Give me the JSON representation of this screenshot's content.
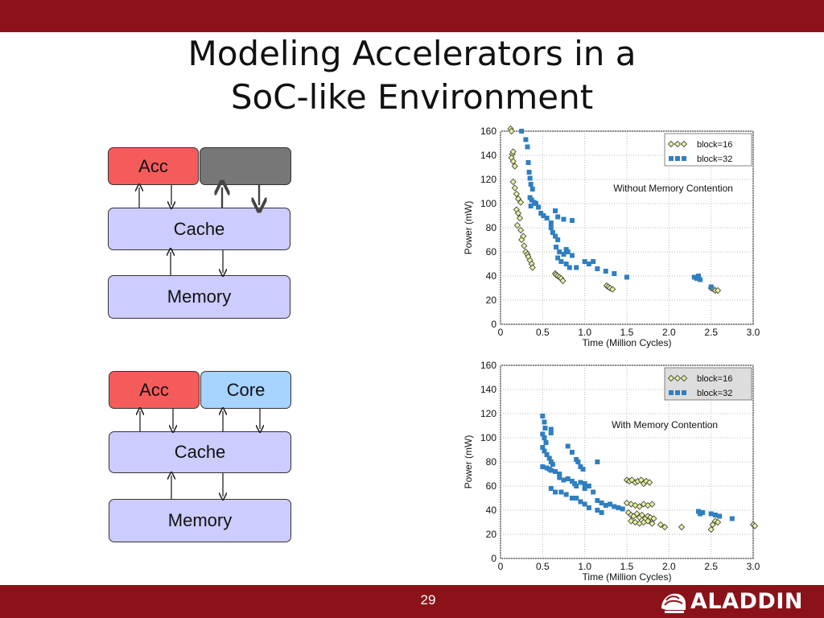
{
  "slide": {
    "title_line1": "Modeling Accelerators in a",
    "title_line2": "SoC-like Environment",
    "page_number": "29",
    "logo_text": "ALADDIN",
    "colors": {
      "bar": "#8b1218",
      "acc": "#f65b5b",
      "core": "#a6d3ff",
      "cache": "#ccccff",
      "grey": "#777777"
    }
  },
  "diagram_top": {
    "acc_label": "Acc",
    "cache_label": "Cache",
    "memory_label": "Memory"
  },
  "diagram_bottom": {
    "acc_label": "Acc",
    "core_label": "Core",
    "cache_label": "Cache",
    "memory_label": "Memory"
  },
  "chart_data": [
    {
      "type": "scatter",
      "annotation": "Without Memory Contention",
      "xlabel": "Time (Million Cycles)",
      "ylabel": "Power (mW)",
      "xlim": [
        0,
        3.0
      ],
      "ylim": [
        0,
        160
      ],
      "xticks": [
        "0",
        "0.5",
        "1.0",
        "1.5",
        "2.0",
        "2.5",
        "3.0"
      ],
      "yticks": [
        "0",
        "20",
        "40",
        "60",
        "80",
        "100",
        "120",
        "140",
        "160"
      ],
      "grid": true,
      "legend_position": "top-right",
      "series": [
        {
          "name": "block=16",
          "marker": "diamond",
          "color": "#e8f0a0",
          "points": [
            [
              0.12,
              162
            ],
            [
              0.13,
              160
            ],
            [
              0.14,
              141
            ],
            [
              0.15,
              143
            ],
            [
              0.13,
              138
            ],
            [
              0.15,
              135
            ],
            [
              0.17,
              131
            ],
            [
              0.15,
              118
            ],
            [
              0.17,
              113
            ],
            [
              0.19,
              108
            ],
            [
              0.21,
              104
            ],
            [
              0.24,
              101
            ],
            [
              0.19,
              95
            ],
            [
              0.21,
              92
            ],
            [
              0.23,
              88
            ],
            [
              0.2,
              82
            ],
            [
              0.24,
              78
            ],
            [
              0.27,
              73
            ],
            [
              0.25,
              70
            ],
            [
              0.28,
              65
            ],
            [
              0.3,
              60
            ],
            [
              0.32,
              58
            ],
            [
              0.33,
              56
            ],
            [
              0.35,
              53
            ],
            [
              0.37,
              50
            ],
            [
              0.38,
              47
            ],
            [
              0.65,
              42
            ],
            [
              0.66,
              41
            ],
            [
              0.68,
              40
            ],
            [
              0.7,
              39
            ],
            [
              0.72,
              38
            ],
            [
              0.74,
              36
            ],
            [
              1.26,
              32
            ],
            [
              1.28,
              31
            ],
            [
              1.3,
              30
            ],
            [
              1.33,
              29
            ],
            [
              2.5,
              30
            ],
            [
              2.53,
              29
            ],
            [
              2.55,
              28
            ],
            [
              2.58,
              28
            ]
          ]
        },
        {
          "name": "block=32",
          "marker": "square",
          "color": "#2f7fc1",
          "points": [
            [
              0.25,
              160
            ],
            [
              0.3,
              153
            ],
            [
              0.32,
              147
            ],
            [
              0.33,
              134
            ],
            [
              0.34,
              126
            ],
            [
              0.35,
              121
            ],
            [
              0.36,
              116
            ],
            [
              0.38,
              112
            ],
            [
              0.35,
              105
            ],
            [
              0.37,
              103
            ],
            [
              0.4,
              101
            ],
            [
              0.36,
              98
            ],
            [
              0.42,
              100
            ],
            [
              0.45,
              97
            ],
            [
              0.48,
              92
            ],
            [
              0.51,
              90
            ],
            [
              0.55,
              88
            ],
            [
              0.65,
              94
            ],
            [
              0.68,
              89
            ],
            [
              0.75,
              87
            ],
            [
              0.85,
              86
            ],
            [
              0.6,
              84
            ],
            [
              0.6,
              80
            ],
            [
              0.62,
              76
            ],
            [
              0.65,
              73
            ],
            [
              0.68,
              70
            ],
            [
              0.66,
              64
            ],
            [
              0.7,
              60
            ],
            [
              0.75,
              58
            ],
            [
              0.78,
              62
            ],
            [
              0.8,
              60
            ],
            [
              0.85,
              57
            ],
            [
              0.68,
              55
            ],
            [
              0.72,
              52
            ],
            [
              0.78,
              50
            ],
            [
              0.82,
              47
            ],
            [
              0.9,
              47
            ],
            [
              1.0,
              52
            ],
            [
              1.05,
              50
            ],
            [
              1.1,
              52
            ],
            [
              1.15,
              46
            ],
            [
              1.25,
              44
            ],
            [
              1.35,
              42
            ],
            [
              1.5,
              39
            ],
            [
              2.3,
              39
            ],
            [
              2.33,
              38
            ],
            [
              2.35,
              40
            ],
            [
              2.37,
              37
            ],
            [
              2.5,
              31
            ]
          ]
        }
      ]
    },
    {
      "type": "scatter",
      "annotation": "With Memory Contention",
      "xlabel": "Time (Million Cycles)",
      "ylabel": "Power (mW)",
      "xlim": [
        0,
        3.0
      ],
      "ylim": [
        0,
        160
      ],
      "xticks": [
        "0",
        "0.5",
        "1.0",
        "1.5",
        "2.0",
        "2.5",
        "3.0"
      ],
      "yticks": [
        "0",
        "20",
        "40",
        "60",
        "80",
        "100",
        "120",
        "140",
        "160"
      ],
      "grid": true,
      "legend_position": "top-right",
      "series": [
        {
          "name": "block=16",
          "marker": "diamond",
          "color": "#e8f0a0",
          "points": [
            [
              1.5,
              65
            ],
            [
              1.53,
              64
            ],
            [
              1.56,
              65
            ],
            [
              1.6,
              63
            ],
            [
              1.63,
              64
            ],
            [
              1.67,
              65
            ],
            [
              1.7,
              62
            ],
            [
              1.73,
              64
            ],
            [
              1.77,
              63
            ],
            [
              1.5,
              46
            ],
            [
              1.55,
              45
            ],
            [
              1.6,
              44
            ],
            [
              1.65,
              43
            ],
            [
              1.7,
              45
            ],
            [
              1.75,
              44
            ],
            [
              1.8,
              45
            ],
            [
              1.52,
              38
            ],
            [
              1.55,
              36
            ],
            [
              1.58,
              35
            ],
            [
              1.62,
              37
            ],
            [
              1.65,
              34
            ],
            [
              1.68,
              36
            ],
            [
              1.72,
              33
            ],
            [
              1.75,
              35
            ],
            [
              1.78,
              34
            ],
            [
              1.82,
              33
            ],
            [
              1.55,
              31
            ],
            [
              1.6,
              30
            ],
            [
              1.65,
              29
            ],
            [
              1.7,
              30
            ],
            [
              1.75,
              31
            ],
            [
              1.8,
              29
            ],
            [
              1.9,
              28
            ],
            [
              1.95,
              26
            ],
            [
              2.15,
              26
            ],
            [
              2.5,
              24
            ],
            [
              2.52,
              28
            ],
            [
              2.55,
              31
            ],
            [
              2.58,
              30
            ],
            [
              3.0,
              28
            ],
            [
              3.02,
              27
            ]
          ]
        },
        {
          "name": "block=32",
          "marker": "square",
          "color": "#2f7fc1",
          "points": [
            [
              0.5,
              118
            ],
            [
              0.52,
              113
            ],
            [
              0.53,
              108
            ],
            [
              0.5,
              103
            ],
            [
              0.52,
              100
            ],
            [
              0.54,
              96
            ],
            [
              0.5,
              92
            ],
            [
              0.52,
              89
            ],
            [
              0.55,
              86
            ],
            [
              0.58,
              83
            ],
            [
              0.6,
              80
            ],
            [
              0.62,
              78
            ],
            [
              0.5,
              76
            ],
            [
              0.55,
              75
            ],
            [
              0.58,
              74
            ],
            [
              0.6,
              73
            ],
            [
              0.65,
              72
            ],
            [
              0.7,
              70
            ],
            [
              0.6,
              107
            ],
            [
              0.6,
              104
            ],
            [
              0.8,
              93
            ],
            [
              0.85,
              88
            ],
            [
              0.9,
              82
            ],
            [
              0.92,
              80
            ],
            [
              0.95,
              76
            ],
            [
              0.98,
              74
            ],
            [
              1.15,
              80
            ],
            [
              0.7,
              67
            ],
            [
              0.75,
              65
            ],
            [
              0.8,
              66
            ],
            [
              0.85,
              64
            ],
            [
              0.88,
              62
            ],
            [
              0.9,
              60
            ],
            [
              0.95,
              63
            ],
            [
              1.0,
              62
            ],
            [
              1.05,
              60
            ],
            [
              1.0,
              58
            ],
            [
              0.6,
              58
            ],
            [
              0.65,
              55
            ],
            [
              0.72,
              55
            ],
            [
              0.78,
              53
            ],
            [
              0.85,
              50
            ],
            [
              0.9,
              50
            ],
            [
              0.95,
              47
            ],
            [
              1.1,
              55
            ],
            [
              1.15,
              48
            ],
            [
              1.2,
              46
            ],
            [
              1.25,
              44
            ],
            [
              1.3,
              45
            ],
            [
              1.35,
              43
            ],
            [
              1.4,
              42
            ],
            [
              1.45,
              41
            ],
            [
              1.0,
              45
            ],
            [
              1.05,
              42
            ],
            [
              1.15,
              40
            ],
            [
              1.2,
              38
            ],
            [
              2.35,
              39
            ],
            [
              2.37,
              37
            ],
            [
              2.4,
              38
            ],
            [
              2.5,
              37
            ],
            [
              2.55,
              36
            ],
            [
              2.6,
              35
            ],
            [
              2.75,
              33
            ]
          ]
        }
      ]
    }
  ]
}
